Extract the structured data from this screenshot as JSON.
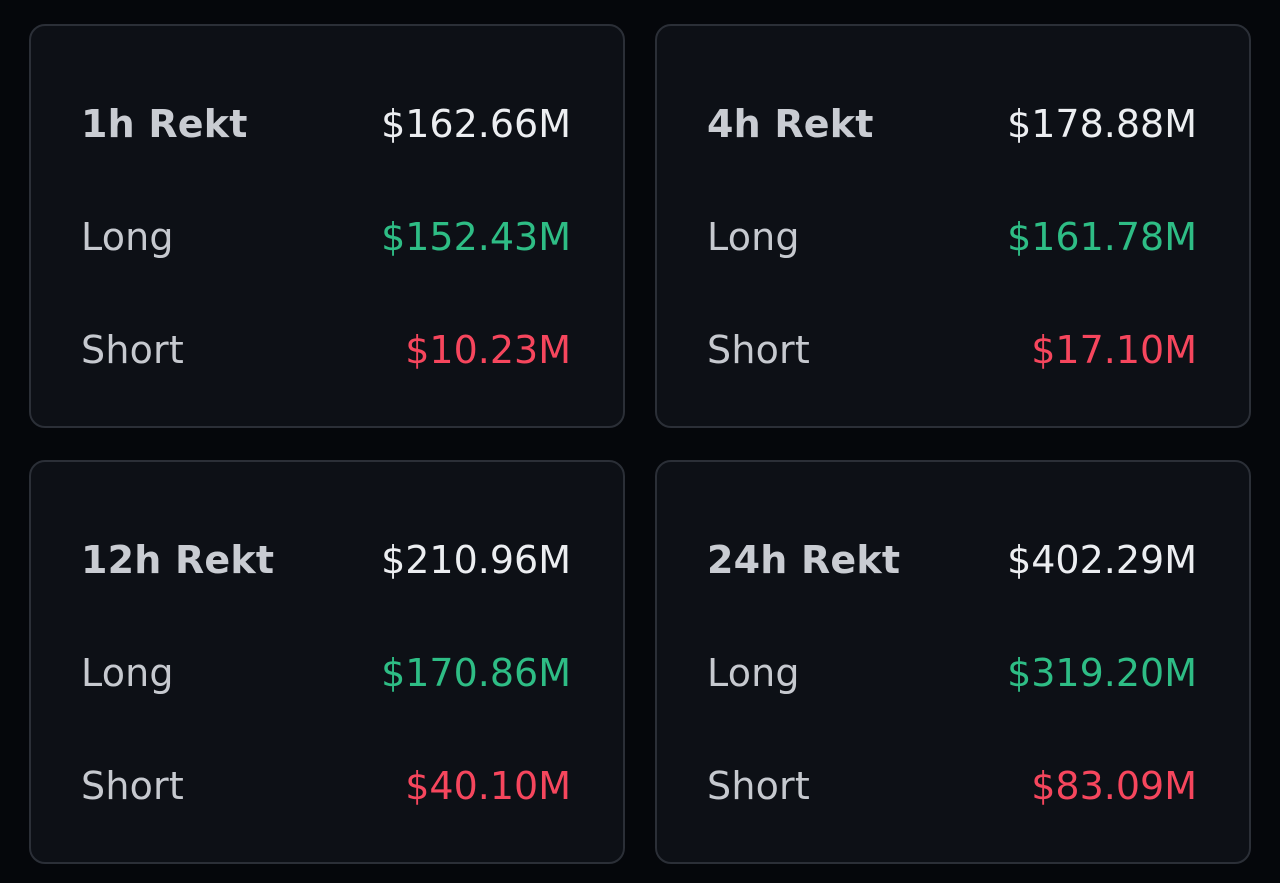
{
  "colors": {
    "background": "#05070b",
    "card_background": "#0d1016",
    "card_border": "#2b2f37",
    "label": "#c6c9cf",
    "total_value": "#eceef1",
    "long_value": "#2ebd85",
    "short_value": "#f6465d"
  },
  "cards": [
    {
      "total_label": "1h Rekt",
      "total_value": "$162.66M",
      "long_label": "Long",
      "long_value": "$152.43M",
      "short_label": "Short",
      "short_value": "$10.23M"
    },
    {
      "total_label": "4h Rekt",
      "total_value": "$178.88M",
      "long_label": "Long",
      "long_value": "$161.78M",
      "short_label": "Short",
      "short_value": "$17.10M"
    },
    {
      "total_label": "12h Rekt",
      "total_value": "$210.96M",
      "long_label": "Long",
      "long_value": "$170.86M",
      "short_label": "Short",
      "short_value": "$40.10M"
    },
    {
      "total_label": "24h Rekt",
      "total_value": "$402.29M",
      "long_label": "Long",
      "long_value": "$319.20M",
      "short_label": "Short",
      "short_value": "$83.09M"
    }
  ]
}
